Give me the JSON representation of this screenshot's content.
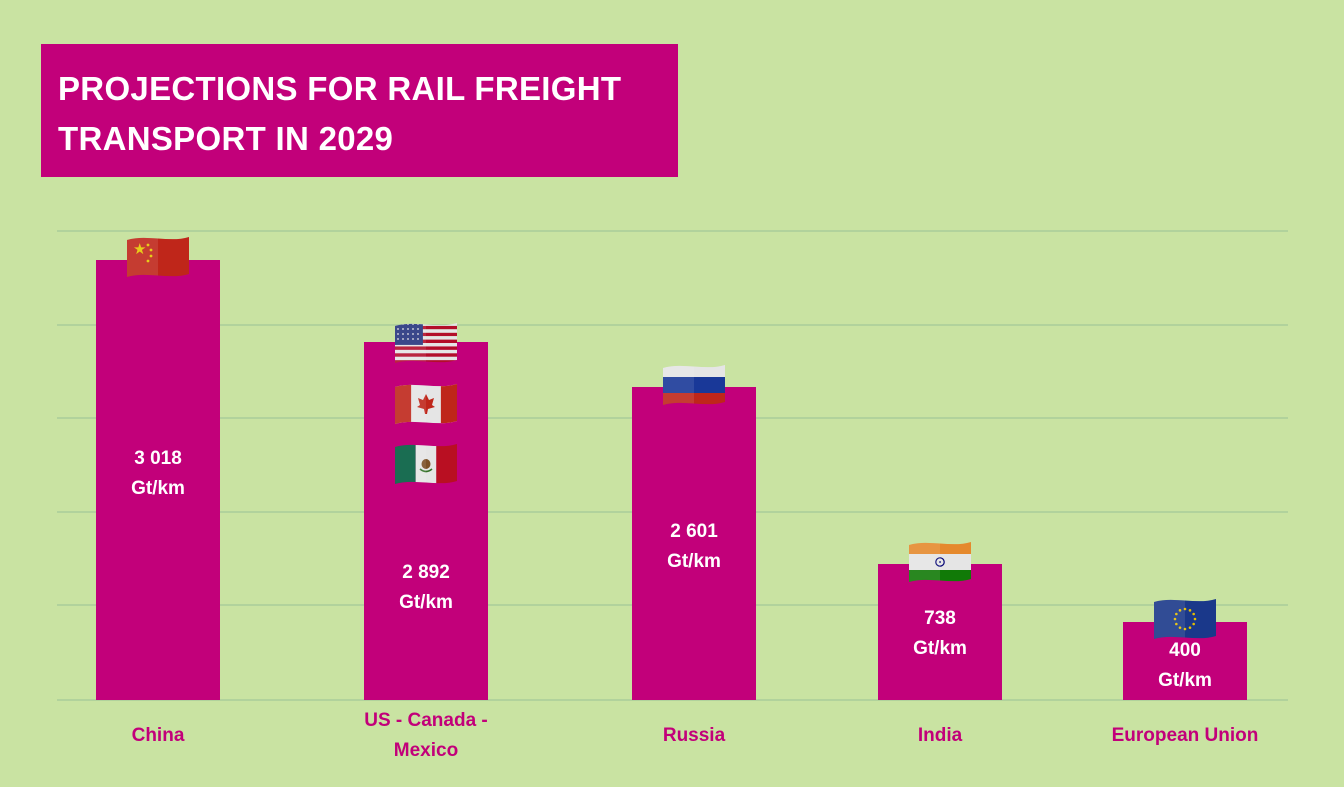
{
  "title": {
    "line1": "PROJECTIONS FOR RAIL FREIGHT",
    "line2": "TRANSPORT IN 2029"
  },
  "colors": {
    "background": "#c9e3a2",
    "bar": "#c2007a",
    "title_box": "#c2007a",
    "category_label": "#c2007a",
    "value_label": "#ffffff",
    "grid": "#a9cc9a"
  },
  "chart_data": {
    "type": "bar",
    "title": "PROJECTIONS FOR RAIL FREIGHT TRANSPORT IN 2029",
    "categories": [
      "China",
      "US - Canada - Mexico",
      "Russia",
      "India",
      "European Union"
    ],
    "category_lines": [
      [
        "China"
      ],
      [
        "US - Canada -",
        "Mexico"
      ],
      [
        "Russia"
      ],
      [
        "India"
      ],
      [
        "European Union"
      ]
    ],
    "values": [
      3018,
      2892,
      2601,
      738,
      400
    ],
    "value_labels": [
      [
        "3 018",
        "Gt/km"
      ],
      [
        "2 892",
        "Gt/km"
      ],
      [
        "2 601",
        "Gt/km"
      ],
      [
        "738",
        "Gt/km"
      ],
      [
        "400",
        "Gt/km"
      ]
    ],
    "unit": "Gt/km",
    "flags": [
      [
        "china-flag-icon"
      ],
      [
        "usa-flag-icon",
        "canada-flag-icon",
        "mexico-flag-icon"
      ],
      [
        "russia-flag-icon"
      ],
      [
        "india-flag-icon"
      ],
      [
        "eu-flag-icon"
      ]
    ],
    "gridlines": true,
    "legend": "none"
  }
}
